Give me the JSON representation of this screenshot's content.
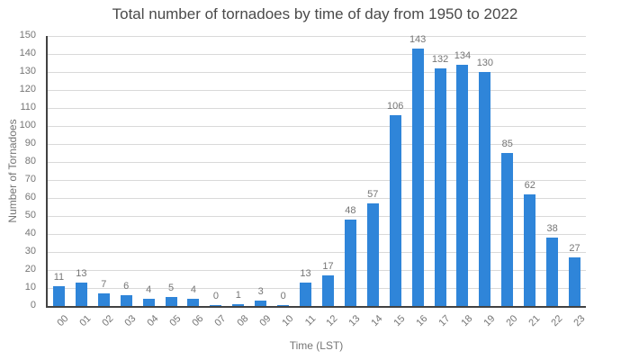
{
  "page": {
    "background": "#FFFFFF"
  },
  "chart_data": {
    "type": "bar",
    "title": "Total number of tornadoes by time of day from 1950 to 2022",
    "xlabel": "Time (LST)",
    "ylabel": "Number of Tornadoes",
    "categories": [
      "00",
      "01",
      "02",
      "03",
      "04",
      "05",
      "06",
      "07",
      "08",
      "09",
      "10",
      "11",
      "12",
      "13",
      "14",
      "15",
      "16",
      "17",
      "18",
      "19",
      "20",
      "21",
      "22",
      "23"
    ],
    "values": [
      11,
      13,
      7,
      6,
      4,
      5,
      4,
      0,
      1,
      3,
      0,
      13,
      17,
      48,
      57,
      106,
      143,
      132,
      134,
      130,
      85,
      62,
      38,
      27
    ],
    "ylim": [
      0,
      150
    ],
    "ytick_step": 10,
    "grid": true,
    "legend": false,
    "data_labels": true,
    "colors": {
      "bar": "#2F85D9",
      "grid": "#D9D9D9",
      "axis": "#424242",
      "tick_text": "#757575",
      "title_text": "#4A4A4A"
    }
  }
}
